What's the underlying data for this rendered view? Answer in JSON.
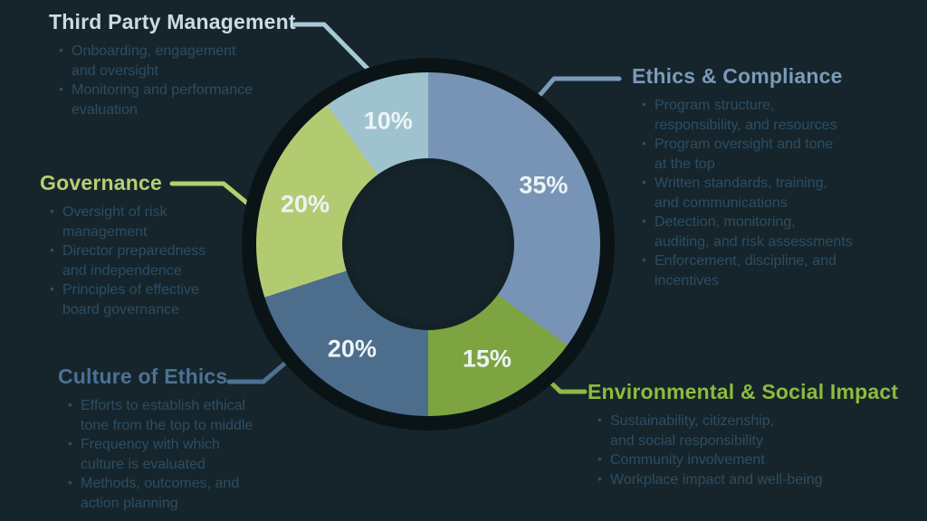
{
  "colors": {
    "background": "#16252b",
    "bullet_text": "#2d4d63",
    "percent_text": "#eef3f5"
  },
  "chart_data": {
    "type": "pie",
    "subtype": "donut",
    "title": "",
    "direction": "clockwise",
    "start_angle_deg": 0,
    "legend_position": "around-chart",
    "segments": [
      {
        "label": "Ethics & Compliance",
        "value": 35,
        "display": "35%",
        "color": "#7794b6"
      },
      {
        "label": "Environmental & Social Impact",
        "value": 15,
        "display": "15%",
        "color": "#7da441"
      },
      {
        "label": "Culture of Ethics",
        "value": 20,
        "display": "20%",
        "color": "#4c6d8c"
      },
      {
        "label": "Governance",
        "value": 20,
        "display": "20%",
        "color": "#b3cb70"
      },
      {
        "label": "Third Party Management",
        "value": 10,
        "display": "10%",
        "color": "#9fc3ce"
      }
    ]
  },
  "sections": {
    "third_party": {
      "title": "Third Party Management",
      "title_color": "#c9dce5",
      "line_color": "#a6c9d6",
      "bullets": [
        {
          "lines": [
            "Onboarding, engagement",
            "and oversight"
          ]
        },
        {
          "lines": [
            "Monitoring and performance",
            "evaluation"
          ]
        }
      ]
    },
    "ethics": {
      "title": "Ethics & Compliance",
      "title_color": "#7b9aba",
      "line_color": "#7b9aba",
      "bullets": [
        {
          "lines": [
            "Program structure,",
            "responsibility, and resources"
          ]
        },
        {
          "lines": [
            "Program oversight and tone",
            "at the top"
          ]
        },
        {
          "lines": [
            "Written standards, training,",
            "and communications"
          ]
        },
        {
          "lines": [
            "Detection, monitoring,",
            "auditing, and risk assessments"
          ]
        },
        {
          "lines": [
            "Enforcement, discipline, and",
            "incentives"
          ]
        }
      ]
    },
    "governance": {
      "title": "Governance",
      "title_color": "#b6cf70",
      "line_color": "#b6cf70",
      "bullets": [
        {
          "lines": [
            "Oversight of risk",
            "management"
          ]
        },
        {
          "lines": [
            "Director preparedness",
            "and independence"
          ]
        },
        {
          "lines": [
            "Principles of effective",
            "board governance"
          ]
        }
      ]
    },
    "culture": {
      "title": "Culture of Ethics",
      "title_color": "#4b7294",
      "line_color": "#4b7294",
      "bullets": [
        {
          "lines": [
            "Efforts to establish ethical",
            "tone from the top to middle"
          ]
        },
        {
          "lines": [
            "Frequency with which",
            "culture is evaluated"
          ]
        },
        {
          "lines": [
            "Methods, outcomes, and",
            "action planning"
          ]
        }
      ]
    },
    "environmental": {
      "title": "Environmental & Social Impact",
      "title_color": "#8dbb3e",
      "line_color": "#8fb944",
      "bullets": [
        {
          "lines": [
            "Sustainability, citizenship,",
            "and social responsibility"
          ]
        },
        {
          "lines": [
            "Community involvement"
          ]
        },
        {
          "lines": [
            "Workplace impact and well-being"
          ]
        }
      ]
    }
  }
}
